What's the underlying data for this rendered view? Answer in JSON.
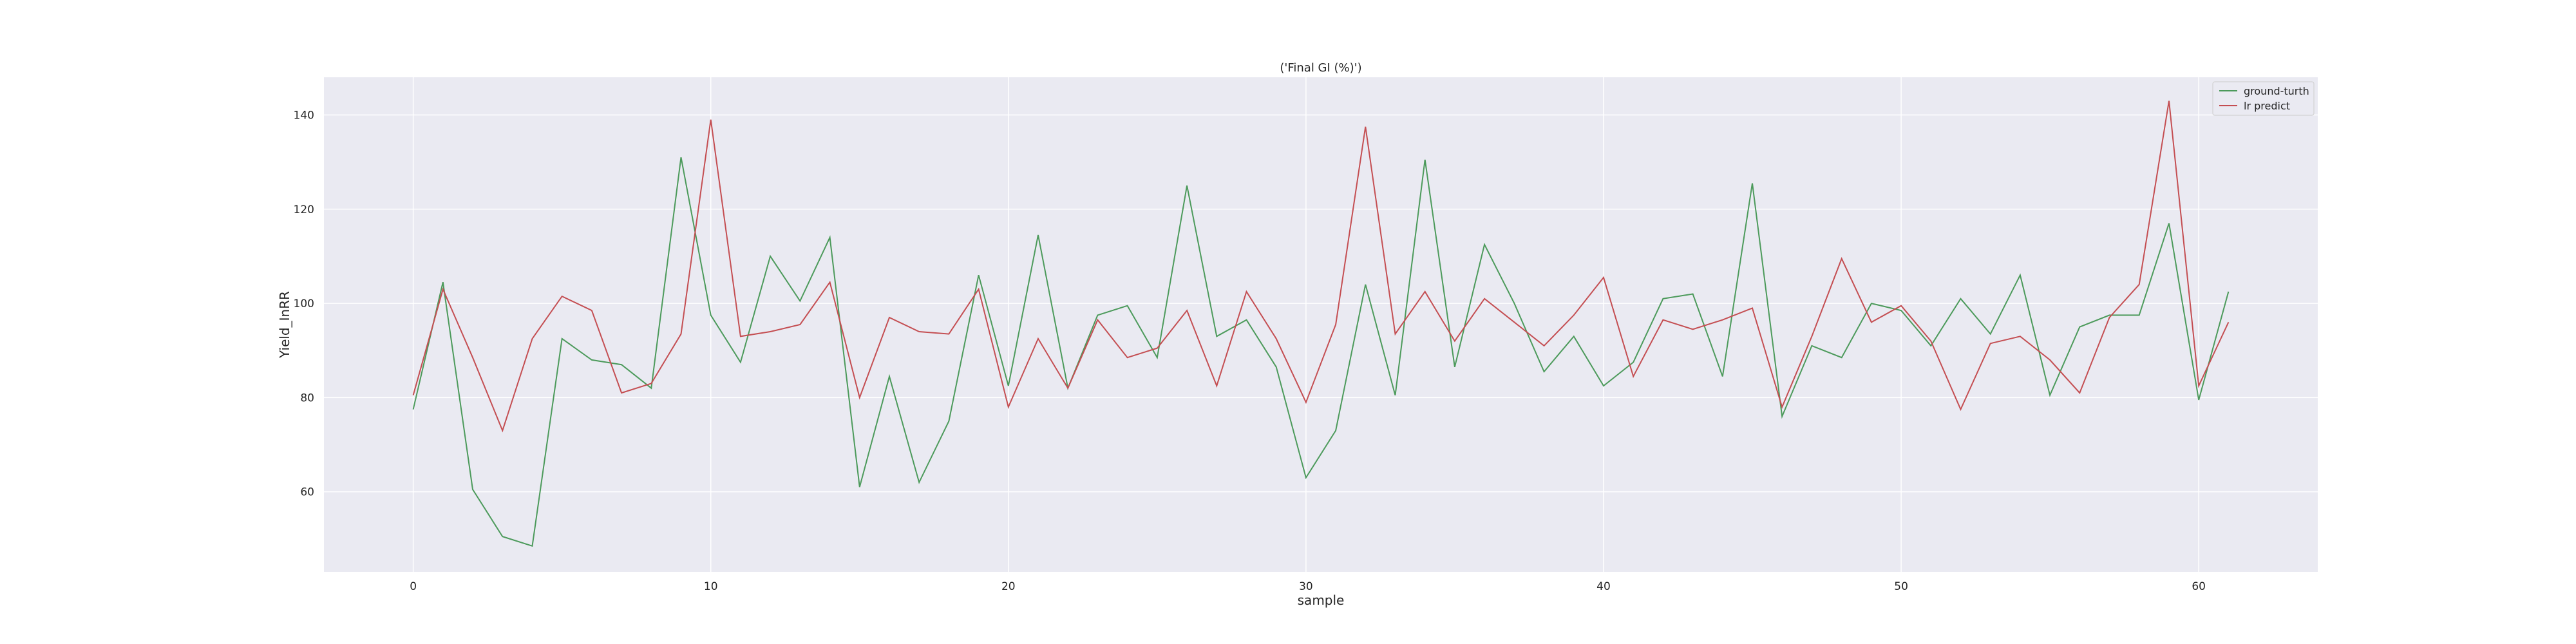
{
  "chart_data": {
    "type": "line",
    "title": "('Final GI (%)')",
    "xlabel": "sample",
    "ylabel": "Yield_InRR",
    "xlim": [
      -3,
      64
    ],
    "ylim": [
      43,
      148
    ],
    "xticks": [
      0,
      10,
      20,
      30,
      40,
      50,
      60
    ],
    "yticks": [
      60,
      80,
      100,
      120,
      140
    ],
    "grid": true,
    "legend_position": "top-right",
    "x": [
      0,
      1,
      2,
      3,
      4,
      5,
      6,
      7,
      8,
      9,
      10,
      11,
      12,
      13,
      14,
      15,
      16,
      17,
      18,
      19,
      20,
      21,
      22,
      23,
      24,
      25,
      26,
      27,
      28,
      29,
      30,
      31,
      32,
      33,
      34,
      35,
      36,
      37,
      38,
      39,
      40,
      41,
      42,
      43,
      44,
      45,
      46,
      47,
      48,
      49,
      50,
      51,
      52,
      53,
      54,
      55,
      56,
      57,
      58,
      59,
      60,
      61
    ],
    "series": [
      {
        "name": "ground-turth",
        "color": "#4c9a5b",
        "values": [
          77.5,
          104.5,
          60.5,
          50.5,
          48.5,
          92.5,
          88,
          87,
          82,
          131,
          97.5,
          87.5,
          110,
          100.5,
          114,
          61,
          84.5,
          62,
          75,
          106,
          82.5,
          114.5,
          82,
          97.5,
          99.5,
          88.5,
          125,
          93,
          96.5,
          86.5,
          63,
          73,
          104,
          80.5,
          130.5,
          86.5,
          112.5,
          100,
          85.5,
          93,
          82.5,
          87.5,
          101,
          102,
          84.5,
          125.5,
          76,
          91,
          88.5,
          100,
          98.5,
          91,
          101,
          93.5,
          106,
          80.5,
          95,
          97.5,
          97.5,
          117,
          79.5,
          102.5
        ]
      },
      {
        "name": "lr predict",
        "color": "#c44e52",
        "values": [
          80.5,
          103,
          88.5,
          73,
          92.5,
          101.5,
          98.5,
          81,
          83,
          93.5,
          139,
          93,
          94,
          95.5,
          104.5,
          80,
          97,
          94,
          93.5,
          103,
          78,
          92.5,
          82,
          96.5,
          88.5,
          90.5,
          98.5,
          82.5,
          102.5,
          92.5,
          79,
          95.5,
          137.5,
          93.5,
          102.5,
          92,
          101,
          96,
          91,
          97.5,
          105.5,
          84.5,
          96.5,
          94.5,
          96.5,
          99,
          78,
          93,
          109.5,
          96,
          99.5,
          92,
          77.5,
          91.5,
          93,
          88,
          81,
          97,
          104,
          143,
          82.5,
          96
        ]
      }
    ]
  }
}
